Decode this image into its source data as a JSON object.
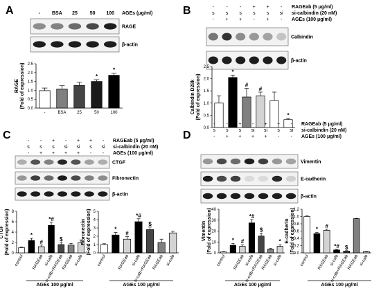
{
  "panels": [
    {
      "letter": "A",
      "header": {
        "type": "lanes",
        "labels": [
          "-",
          "BSA",
          "25",
          "50",
          "100"
        ],
        "title": "AGEs (μg/ml)"
      },
      "blots": [
        {
          "label": "RAGE",
          "intensity": [
            0.45,
            0.5,
            0.6,
            0.75,
            0.95
          ]
        },
        {
          "label": "β-actin",
          "intensity": [
            0.95,
            0.95,
            0.95,
            0.95,
            0.95
          ]
        }
      ],
      "chart_data": {
        "type": "bar",
        "ylabel": "RAGE",
        "ylabel2": "(Fold of expression)",
        "ylim": [
          0,
          2.5
        ],
        "yticks": [
          "0.0",
          "0.5",
          "1.0",
          "1.5",
          "2.0",
          "2.5"
        ],
        "categories": [
          "-",
          "BSA",
          "25",
          "50",
          "100"
        ],
        "values": [
          0.98,
          1.08,
          1.28,
          1.5,
          1.85
        ],
        "errors": [
          0.15,
          0.18,
          0.18,
          0.1,
          0.12
        ],
        "colors": [
          "#ffffff",
          "#808080",
          "#444444",
          "#1a1a1a",
          "#000000"
        ],
        "marks": [
          "",
          "",
          "",
          "*",
          "*"
        ]
      }
    },
    {
      "letter": "B",
      "header": {
        "type": "matrix",
        "rows": [
          {
            "label": "RAGEab (5 μg/ml)",
            "cells": [
              "-",
              "-",
              "-",
              "+",
              "+",
              "-"
            ]
          },
          {
            "label": "si-calbindin (20 nM)",
            "cells": [
              "s",
              "s",
              "s",
              "s",
              "s",
              "si"
            ]
          },
          {
            "label": "AGEs (100 μg/ml)",
            "cells": [
              "-",
              "+",
              "+",
              "-",
              "+",
              "-"
            ]
          }
        ]
      },
      "blots": [
        {
          "label": "Calbindin",
          "intensity": [
            0.55,
            0.85,
            0.45,
            0.4,
            0.35,
            0.2
          ]
        },
        {
          "label": "β-actin",
          "intensity": [
            0.95,
            0.95,
            0.95,
            0.95,
            0.95,
            0.95
          ]
        }
      ],
      "chart_data": {
        "type": "bar",
        "ylabel": "Calbindin D28k",
        "ylabel2": "(Fold of expression)",
        "ylim": [
          0,
          2.5
        ],
        "yticks": [
          "0.0",
          "0.5",
          "1.0",
          "1.5",
          "2.0",
          "2.5"
        ],
        "values": [
          1.0,
          2.05,
          1.25,
          1.3,
          1.1,
          0.32
        ],
        "errors": [
          0.3,
          0.1,
          0.35,
          0.15,
          0.35,
          0.05
        ],
        "colors": [
          "#ffffff",
          "#000000",
          "#808080",
          "#d3d3d3",
          "#ffffff",
          "#ffffff"
        ],
        "marks": [
          "",
          "*",
          "#",
          "#",
          "",
          "*"
        ]
      }
    },
    {
      "letter": "C",
      "header": {
        "type": "matrix",
        "rows": [
          {
            "label": "RAGEab (5 μg/ml)",
            "cells": [
              "-",
              "-",
              "+",
              "-",
              "+",
              "+",
              "-"
            ]
          },
          {
            "label": "si-calbindin (20 nM)",
            "cells": [
              "s",
              "s",
              "s",
              "si",
              "si",
              "s",
              "si"
            ]
          },
          {
            "label": "AGEs (100 μg/ml)",
            "cells": [
              "-",
              "+",
              "+",
              "+",
              "+",
              "-",
              "-"
            ]
          }
        ]
      },
      "blots": [
        {
          "label": "CTGF",
          "intensity": [
            0.3,
            0.7,
            0.5,
            0.9,
            0.7,
            0.35,
            0.3
          ]
        },
        {
          "label": "Fibronectin",
          "intensity": [
            0.4,
            0.8,
            0.6,
            0.95,
            0.75,
            0.5,
            0.45
          ]
        },
        {
          "label": "β-actin",
          "intensity": [
            0.95,
            0.95,
            0.95,
            0.95,
            0.95,
            0.95,
            0.95
          ]
        }
      ],
      "group_label": "AGEs 100 μg/ml",
      "chart_data": [
        {
          "type": "bar",
          "ylabel": "CTGF",
          "ylabel2": "(Fold of expression)",
          "ylim": [
            0,
            8
          ],
          "yticks": [
            "0",
            "2",
            "4",
            "6",
            "8"
          ],
          "categories": [
            "control",
            "",
            "RAGEab",
            "si-calb",
            "si-calb+RAGEab",
            "RAGEab",
            "si-calb"
          ],
          "values": [
            1.0,
            2.4,
            1.2,
            5.3,
            1.6,
            1.5,
            2.0
          ],
          "errors": [
            0.15,
            0.4,
            0.3,
            0.6,
            0.4,
            0.3,
            0.5
          ],
          "colors": [
            "#ffffff",
            "#000000",
            "#d3d3d3",
            "#000000",
            "#444444",
            "#808080",
            "#d3d3d3"
          ],
          "marks": [
            "",
            "*",
            "#",
            "*#",
            "$",
            "",
            ""
          ]
        },
        {
          "type": "bar",
          "ylabel": "Fibronectin",
          "ylabel2": "(Fold of expression)",
          "ylim": [
            0,
            5
          ],
          "yticks": [
            "0",
            "1",
            "2",
            "3",
            "4",
            "5"
          ],
          "categories": [
            "control",
            "",
            "RAGEab",
            "si-calb",
            "si-calb+RAGEab",
            "RAGEab",
            "si-calb"
          ],
          "values": [
            1.0,
            2.15,
            1.65,
            3.75,
            2.8,
            1.25,
            2.4
          ],
          "errors": [
            0.1,
            0.3,
            0.3,
            0.35,
            0.3,
            0.4,
            0.2
          ],
          "colors": [
            "#ffffff",
            "#000000",
            "#d3d3d3",
            "#000000",
            "#444444",
            "#808080",
            "#d3d3d3"
          ],
          "marks": [
            "",
            "*",
            "#",
            "*#",
            "$",
            "",
            ""
          ]
        }
      ]
    },
    {
      "letter": "D",
      "header": {
        "type": "matrix",
        "rows": [
          {
            "label": "RAGEab (5 μg/ml)",
            "cells": [
              "-",
              "-",
              "+",
              "-",
              "+",
              "+",
              "-"
            ]
          },
          {
            "label": "si-calbindin (20 nM)",
            "cells": [
              "s",
              "s",
              "s",
              "si",
              "si",
              "s",
              "si"
            ]
          },
          {
            "label": "AGEs (100 μg/ml)",
            "cells": [
              "-",
              "+",
              "+",
              "+",
              "+",
              "-",
              "-"
            ]
          }
        ]
      },
      "blots": [
        {
          "label": "Vimentin",
          "intensity": [
            0.4,
            0.75,
            0.6,
            0.95,
            0.8,
            0.4,
            0.35
          ]
        },
        {
          "label": "E-cadherin",
          "intensity": [
            0.95,
            0.75,
            0.8,
            0.1,
            0.1,
            0.9,
            0.15
          ]
        },
        {
          "label": "β-actin",
          "intensity": [
            0.95,
            0.95,
            0.95,
            0.95,
            0.95,
            0.95,
            0.95
          ]
        }
      ],
      "group_label": "AGEs 100 μg/ml",
      "chart_data": [
        {
          "type": "bar",
          "ylabel": "Vimentin",
          "ylabel2": "(Fold of expression)",
          "ylim": [
            0,
            40
          ],
          "yticks": [
            "0",
            "10",
            "20",
            "30",
            "40"
          ],
          "categories": [
            "control",
            "",
            "RAGEab",
            "si-calb",
            "si-calb+RAGEab",
            "RAGEab",
            "si-calb"
          ],
          "values": [
            1.0,
            7.0,
            6.0,
            27.5,
            15.5,
            3.5,
            6.0
          ],
          "errors": [
            0.3,
            1.5,
            1.5,
            3.0,
            2.5,
            0.5,
            1.5
          ],
          "colors": [
            "#ffffff",
            "#000000",
            "#d3d3d3",
            "#000000",
            "#444444",
            "#808080",
            "#d3d3d3"
          ],
          "marks": [
            "",
            "*",
            "#",
            "*#",
            "$",
            "",
            "*"
          ]
        },
        {
          "type": "bar",
          "ylabel": "E-cadherin",
          "ylabel2": "(Fold of expression)",
          "ylim": [
            0,
            1.2
          ],
          "yticks": [
            "0.0",
            "0.2",
            "0.4",
            "0.6",
            "0.8",
            "1.0",
            "1.2"
          ],
          "categories": [
            "control",
            "",
            "RAGEab",
            "si-calb",
            "si-calb+RAGEab",
            "RAGEab",
            "si-calb"
          ],
          "values": [
            1.0,
            0.53,
            0.62,
            0.08,
            0.05,
            0.94,
            0.04
          ],
          "errors": [
            0.02,
            0.03,
            0.03,
            0.02,
            0.01,
            0.01,
            0.01
          ],
          "colors": [
            "#ffffff",
            "#000000",
            "#d3d3d3",
            "#000000",
            "#444444",
            "#808080",
            "#d3d3d3"
          ],
          "marks": [
            "",
            "*",
            "#",
            "*#",
            "$",
            "",
            ""
          ]
        }
      ]
    }
  ]
}
